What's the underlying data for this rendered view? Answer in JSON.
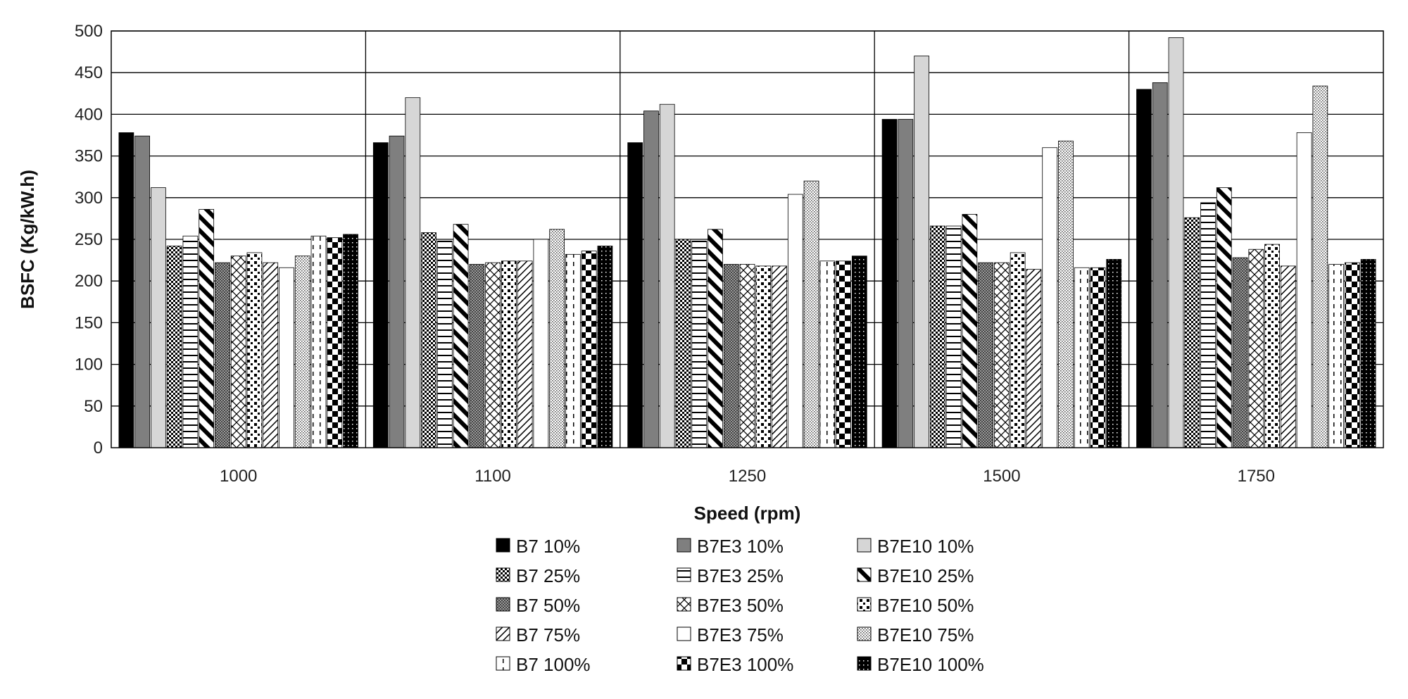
{
  "chart_data": {
    "type": "bar",
    "title": "",
    "xlabel": "Speed (rpm)",
    "ylabel": "BSFC (Kg/kW.h)",
    "ylim": [
      0,
      500
    ],
    "yticks": [
      0,
      50,
      100,
      150,
      200,
      250,
      300,
      350,
      400,
      450,
      500
    ],
    "grid": true,
    "legend_position": "bottom",
    "categories": [
      "1000",
      "1100",
      "1250",
      "1500",
      "1750"
    ],
    "series": [
      {
        "name": "B7 10%",
        "pattern": "solid-black",
        "values": [
          378,
          366,
          366,
          394,
          430
        ]
      },
      {
        "name": "B7E3 10%",
        "pattern": "solid-gray",
        "values": [
          374,
          374,
          404,
          394,
          438
        ]
      },
      {
        "name": "B7E10 10%",
        "pattern": "light-gray",
        "values": [
          312,
          420,
          412,
          470,
          492
        ]
      },
      {
        "name": "B7 25%",
        "pattern": "check-small",
        "values": [
          242,
          258,
          250,
          266,
          276
        ]
      },
      {
        "name": "B7E3 25%",
        "pattern": "horiz-lines",
        "values": [
          254,
          248,
          248,
          266,
          294
        ]
      },
      {
        "name": "B7E10 25%",
        "pattern": "wide-diag",
        "values": [
          286,
          268,
          262,
          280,
          312
        ]
      },
      {
        "name": "B7 50%",
        "pattern": "fine-dots",
        "values": [
          222,
          220,
          220,
          222,
          228
        ]
      },
      {
        "name": "B7E3 50%",
        "pattern": "cross-hatch",
        "values": [
          230,
          222,
          220,
          222,
          238
        ]
      },
      {
        "name": "B7E10 50%",
        "pattern": "dots-large",
        "values": [
          234,
          224,
          218,
          234,
          244
        ]
      },
      {
        "name": "B7 75%",
        "pattern": "light-diag",
        "values": [
          222,
          224,
          218,
          214,
          218
        ]
      },
      {
        "name": "B7E3 75%",
        "pattern": "white",
        "values": [
          216,
          250,
          304,
          360,
          378
        ]
      },
      {
        "name": "B7E10 75%",
        "pattern": "stipple",
        "values": [
          230,
          262,
          320,
          368,
          434
        ]
      },
      {
        "name": "B7 100%",
        "pattern": "dash-vert",
        "values": [
          254,
          232,
          224,
          216,
          220
        ]
      },
      {
        "name": "B7E3 100%",
        "pattern": "big-check",
        "values": [
          252,
          236,
          224,
          216,
          222
        ]
      },
      {
        "name": "B7E10 100%",
        "pattern": "black-dotted",
        "values": [
          256,
          242,
          230,
          226,
          226
        ]
      }
    ]
  }
}
